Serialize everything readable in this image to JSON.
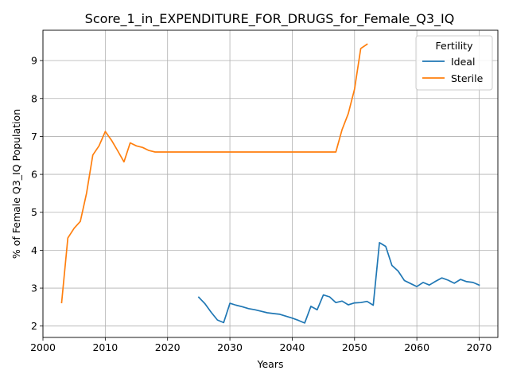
{
  "chart_data": {
    "type": "line",
    "title": "Score_1_in_EXPENDITURE_FOR_DRUGS_for_Female_Q3_IQ",
    "xlabel": "Years",
    "ylabel": "% of Female Q3_IQ Population",
    "xlim": [
      2000,
      2073
    ],
    "ylim": [
      1.7,
      9.8
    ],
    "xticks": [
      2000,
      2010,
      2020,
      2030,
      2040,
      2050,
      2060,
      2070
    ],
    "yticks": [
      2,
      3,
      4,
      5,
      6,
      7,
      8,
      9
    ],
    "grid": true,
    "legend": {
      "title": "Fertility",
      "position": "top-right"
    },
    "series": [
      {
        "name": "Ideal",
        "color": "#1f77b4",
        "x": [
          2025,
          2026,
          2027,
          2028,
          2029,
          2030,
          2031,
          2032,
          2033,
          2034,
          2035,
          2036,
          2037,
          2038,
          2039,
          2040,
          2041,
          2042,
          2043,
          2044,
          2045,
          2046,
          2047,
          2048,
          2049,
          2050,
          2051,
          2052,
          2053,
          2054,
          2055,
          2056,
          2057,
          2058,
          2059,
          2060,
          2061,
          2062,
          2063,
          2064,
          2065,
          2066,
          2067,
          2068,
          2069,
          2070
        ],
        "values": [
          2.76,
          2.59,
          2.36,
          2.16,
          2.09,
          2.6,
          2.55,
          2.51,
          2.46,
          2.43,
          2.39,
          2.35,
          2.33,
          2.31,
          2.26,
          2.21,
          2.15,
          2.08,
          2.52,
          2.43,
          2.82,
          2.77,
          2.62,
          2.66,
          2.56,
          2.61,
          2.62,
          2.65,
          2.55,
          4.2,
          4.1,
          3.6,
          3.45,
          3.2,
          3.12,
          3.04,
          3.15,
          3.08,
          3.18,
          3.27,
          3.21,
          3.13,
          3.23,
          3.17,
          3.15,
          3.08
        ]
      },
      {
        "name": "Sterile",
        "color": "#ff7f0e",
        "x": [
          2003,
          2004,
          2005,
          2006,
          2007,
          2008,
          2009,
          2010,
          2011,
          2012,
          2013,
          2014,
          2015,
          2016,
          2017,
          2018,
          2019,
          2020,
          2025,
          2030,
          2035,
          2040,
          2045,
          2047,
          2048,
          2049,
          2050,
          2051,
          2052
        ],
        "values": [
          2.62,
          4.32,
          4.58,
          4.76,
          5.5,
          6.51,
          6.75,
          7.13,
          6.9,
          6.62,
          6.33,
          6.83,
          6.75,
          6.71,
          6.63,
          6.59,
          6.59,
          6.59,
          6.59,
          6.59,
          6.59,
          6.59,
          6.59,
          6.59,
          7.18,
          7.6,
          8.25,
          9.32,
          9.43
        ]
      }
    ]
  }
}
